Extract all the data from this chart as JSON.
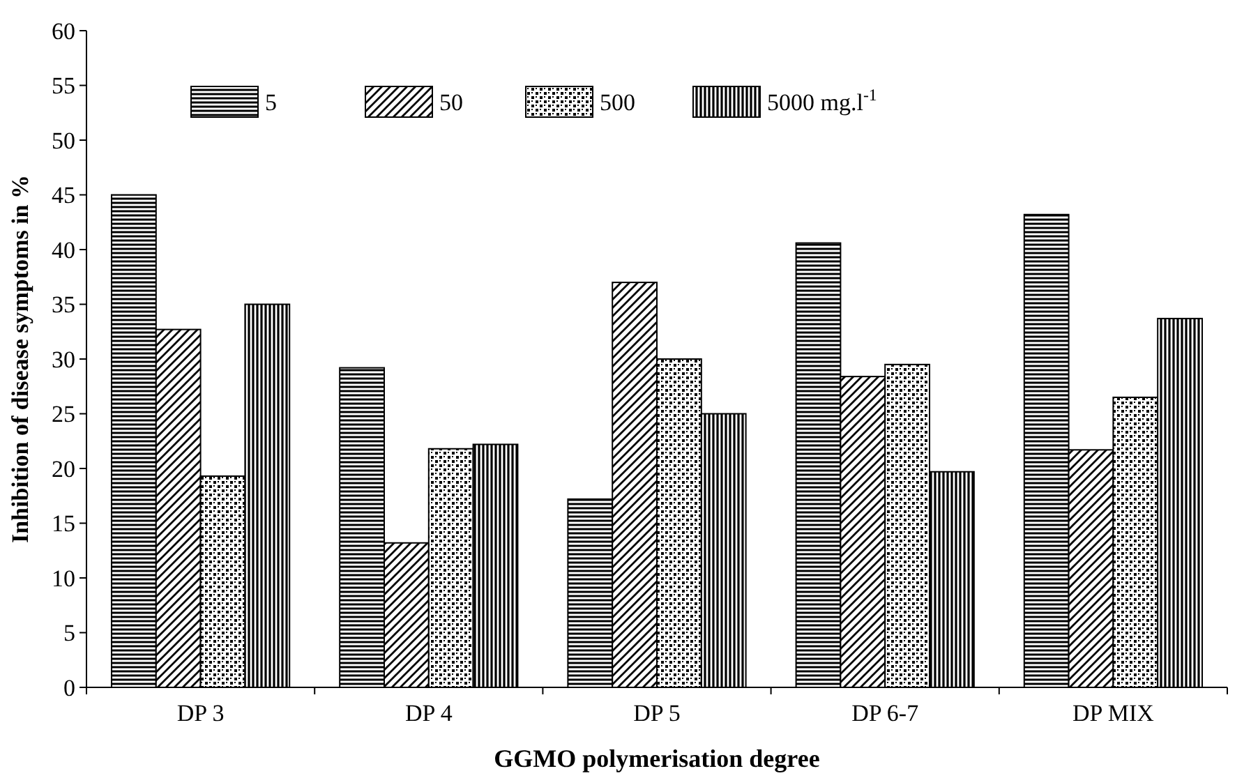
{
  "chart_data": {
    "type": "bar",
    "xlabel": "GGMO polymerisation degree",
    "ylabel": "Inhibition of disease symptoms in %",
    "categories": [
      "DP 3",
      "DP 4",
      "DP 5",
      "DP 6-7",
      "DP MIX"
    ],
    "series": [
      {
        "name": "5",
        "color": "#000000",
        "values": [
          45,
          29.2,
          17.2,
          40.6,
          43.2
        ]
      },
      {
        "name": "50",
        "color": "#000000",
        "values": [
          32.7,
          13.2,
          37,
          28.4,
          21.7
        ]
      },
      {
        "name": "500",
        "color": "#000000",
        "values": [
          19.3,
          21.8,
          30,
          29.5,
          26.5
        ]
      },
      {
        "name": "5000 mg.l$^{-1}$",
        "color": "#000000",
        "values": [
          35,
          22.2,
          25,
          19.7,
          33.7
        ]
      }
    ],
    "ylim": [
      0,
      60
    ],
    "yticks": [
      0,
      5,
      10,
      15,
      20,
      25,
      30,
      35,
      40,
      45,
      50,
      55,
      60
    ],
    "grid": false,
    "legend": "top left"
  }
}
